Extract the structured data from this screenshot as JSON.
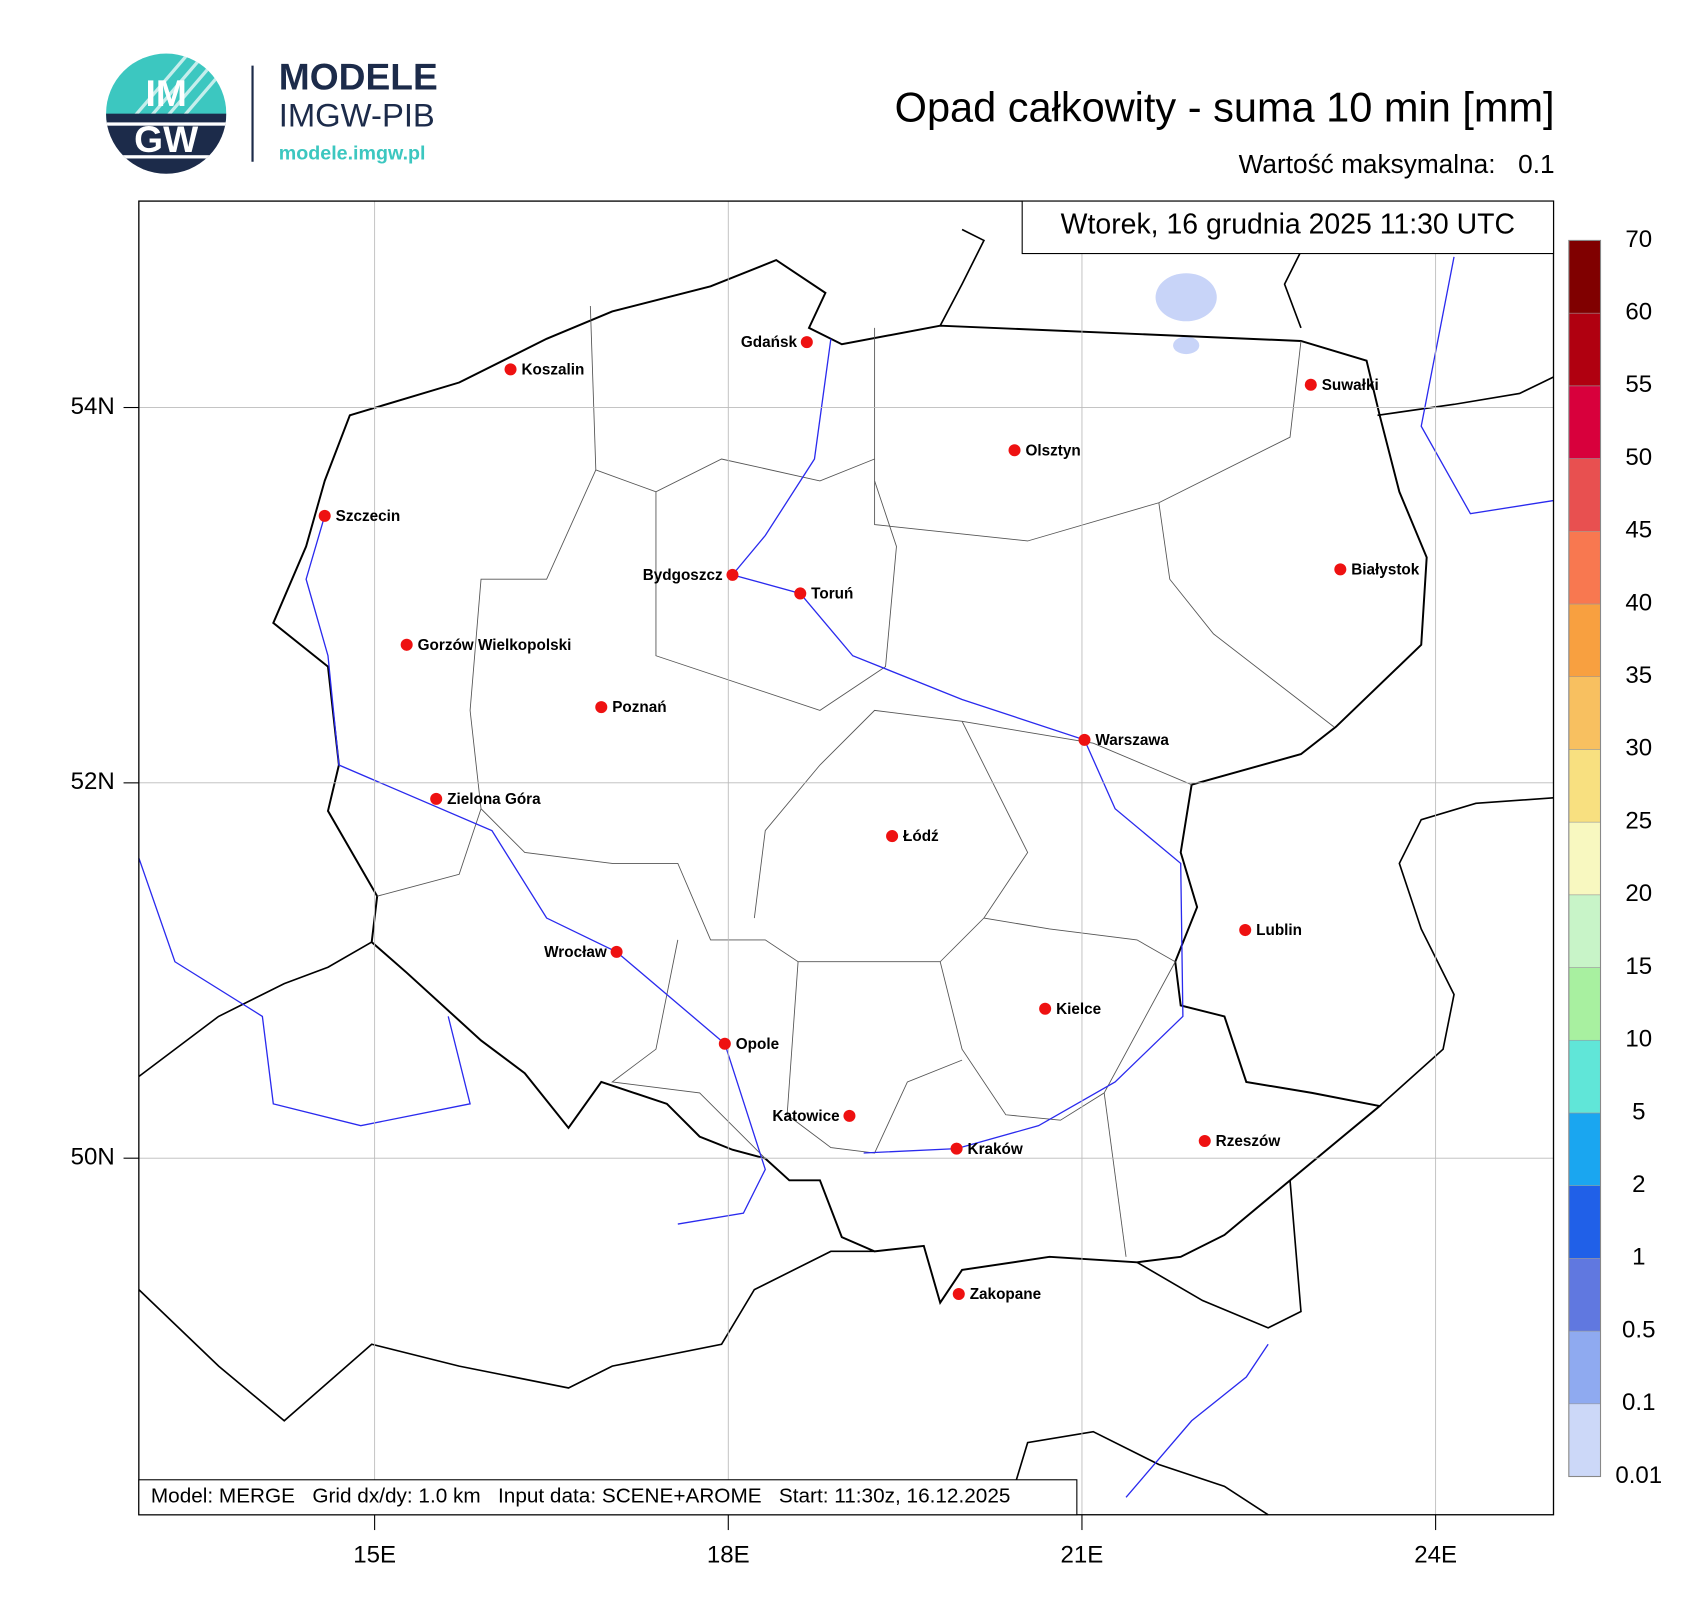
{
  "header": {
    "logo_top": "IM",
    "logo_bottom": "GW",
    "brand": "MODELE",
    "brand_sub": "IMGW-PIB",
    "url": "modele.imgw.pl"
  },
  "chart_data": {
    "type": "map",
    "title": "Opad całkowity - suma 10 min [mm]",
    "max_label": "Wartość maksymalna:",
    "max_value": 0.1,
    "date": "Wtorek, 16 grudnia 2025 11:30 UTC",
    "footer": "Model: MERGE   Grid dx/dy: 1.0 km   Input data: SCENE+AROME   Start: 11:30z, 16.12.2025",
    "xlim": [
      13,
      25
    ],
    "ylim": [
      48.1,
      55.1
    ],
    "xticks": [
      {
        "value": 15,
        "label": "15E"
      },
      {
        "value": 18,
        "label": "18E"
      },
      {
        "value": 21,
        "label": "21E"
      },
      {
        "value": 24,
        "label": "24E"
      }
    ],
    "yticks": [
      {
        "value": 54,
        "label": "54N"
      },
      {
        "value": 52,
        "label": "52N"
      },
      {
        "value": 50,
        "label": "50N"
      }
    ],
    "grid": true,
    "cities": [
      "Gdańsk",
      "Koszalin",
      "Suwałki",
      "Olsztyn",
      "Szczecin",
      "Białystok",
      "Bydgoszcz",
      "Toruń",
      "Gorzów Wielkopolski",
      "Poznań",
      "Warszawa",
      "Zielona Góra",
      "Łódź",
      "Lublin",
      "Wrocław",
      "Kielce",
      "Opole",
      "Katowice",
      "Kraków",
      "Rzeszów",
      "Zakopane"
    ],
    "colorbar": {
      "levels": [
        0.01,
        0.1,
        0.5,
        1,
        2,
        5,
        10,
        15,
        20,
        25,
        30,
        35,
        40,
        45,
        50,
        55,
        60,
        70
      ],
      "colors": [
        "#ccd8f8",
        "#8faaf0",
        "#6078e0",
        "#2060e8",
        "#1aa6f0",
        "#60e6d8",
        "#a8f0a0",
        "#c8f4c8",
        "#f8f8c0",
        "#f8e080",
        "#f8c060",
        "#f8a040",
        "#f87850",
        "#e85050",
        "#d8003c",
        "#b00010",
        "#800000"
      ]
    }
  }
}
